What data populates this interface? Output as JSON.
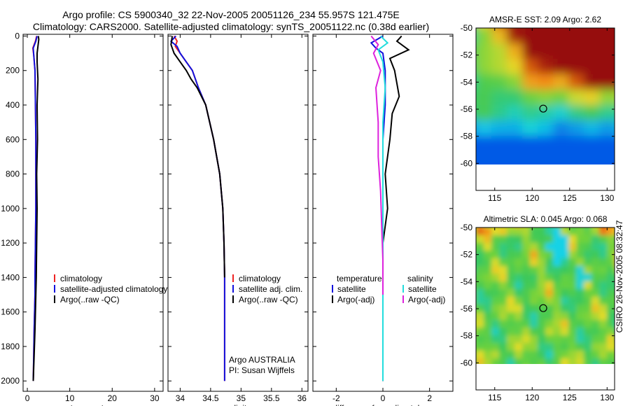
{
  "header": {
    "line1": "Argo profile: CS 5900340_32 22-Nov-2005 20051126_234 55.957S 121.475E",
    "line2": "Climatology: CARS2000. Satellite-adjusted climatology: synTS_20051122.nc (0.38d earlier)"
  },
  "footer": {
    "credit": "CSIRO 26-Nov-2005 08:32:47"
  },
  "colors": {
    "red": "#ee2222",
    "blue": "#1111dd",
    "black": "#000000",
    "cyan": "#22dddd",
    "magenta": "#dd22dd"
  },
  "chart_data": [
    {
      "name": "temperature-profile",
      "type": "line",
      "xlabel": "temperature",
      "xlim": [
        -1,
        32
      ],
      "ylim": [
        2060,
        -10
      ],
      "xticks": [
        0,
        10,
        20,
        30
      ],
      "yticks": [
        0,
        200,
        400,
        600,
        800,
        1000,
        1200,
        1400,
        1600,
        1800,
        2000
      ],
      "legend": {
        "placement": "lower-right",
        "entries": [
          "climatology",
          "satellite-adjusted climatology",
          "Argo(..raw -QC)"
        ]
      },
      "series": [
        {
          "name": "climatology",
          "color": "red",
          "x": [
            2.2,
            1.9,
            1.3,
            1.5,
            1.8,
            1.9,
            2.0,
            2.0,
            2.0,
            1.9,
            1.8,
            1.8,
            1.7,
            1.6,
            1.5,
            1.4
          ],
          "y": [
            0,
            30,
            70,
            110,
            200,
            400,
            600,
            800,
            1000,
            1200,
            1400,
            1500,
            1600,
            1700,
            1850,
            2000
          ]
        },
        {
          "name": "satellite-adjusted climatology",
          "color": "blue",
          "x": [
            2.3,
            2.0,
            1.4,
            1.5,
            1.8,
            1.9,
            2.0,
            2.0,
            2.0,
            1.9,
            1.8,
            1.8,
            1.7,
            1.6,
            1.5,
            1.4
          ],
          "y": [
            0,
            30,
            70,
            110,
            200,
            400,
            600,
            800,
            1000,
            1200,
            1400,
            1500,
            1600,
            1700,
            1850,
            2000
          ]
        },
        {
          "name": "Argo(..raw -QC)",
          "color": "black",
          "x": [
            2.6,
            2.7,
            2.5,
            2.3,
            2.3,
            2.5,
            2.3,
            2.4,
            2.2,
            2.3,
            2.2,
            2.1,
            2.0,
            1.9,
            1.8,
            1.6,
            1.4
          ],
          "y": [
            0,
            20,
            60,
            100,
            150,
            250,
            400,
            600,
            800,
            1000,
            1200,
            1400,
            1500,
            1600,
            1700,
            1850,
            2000
          ]
        }
      ]
    },
    {
      "name": "salinity-profile",
      "type": "line",
      "xlabel": "salinity",
      "xlim": [
        33.8,
        36.1
      ],
      "ylim": [
        2060,
        -10
      ],
      "xticks": [
        34,
        34.5,
        35,
        35.5,
        36
      ],
      "yticks": [
        0,
        200,
        400,
        600,
        800,
        1000,
        1200,
        1400,
        1600,
        1800,
        2000
      ],
      "legend": {
        "placement": "lower-right",
        "entries": [
          "climatology",
          "satellite adj. clim.",
          "Argo(..raw -QC)"
        ]
      },
      "annotations": [
        "Argo AUSTRALIA",
        "PI: Susan Wijffels"
      ],
      "series": [
        {
          "name": "climatology",
          "color": "red",
          "x": [
            33.9,
            33.95,
            33.92,
            34.0,
            34.1,
            34.2,
            34.3,
            34.42,
            34.55,
            34.65,
            34.7,
            34.72,
            34.73,
            34.73,
            34.73,
            34.73
          ],
          "y": [
            0,
            30,
            60,
            100,
            150,
            200,
            300,
            400,
            600,
            800,
            1000,
            1200,
            1400,
            1600,
            1800,
            2000
          ]
        },
        {
          "name": "satellite adj. clim.",
          "color": "blue",
          "x": [
            33.93,
            33.85,
            33.95,
            34.0,
            34.1,
            34.2,
            34.3,
            34.42,
            34.55,
            34.65,
            34.7,
            34.72,
            34.73,
            34.73,
            34.73,
            34.73
          ],
          "y": [
            0,
            30,
            60,
            100,
            150,
            200,
            300,
            400,
            600,
            800,
            1000,
            1200,
            1400,
            1600,
            1800,
            2000
          ]
        },
        {
          "name": "Argo(..raw -QC)",
          "color": "black",
          "x": [
            33.87,
            33.85,
            33.9,
            34.0,
            34.1,
            34.18,
            34.28,
            34.42,
            34.55,
            34.65,
            34.7,
            34.72,
            34.73
          ],
          "y": [
            0,
            50,
            100,
            150,
            200,
            250,
            300,
            400,
            600,
            800,
            1000,
            1200,
            1400
          ]
        }
      ]
    },
    {
      "name": "difference-profile",
      "type": "line",
      "xlabel": "difference from climatology",
      "xlim": [
        -3,
        3
      ],
      "ylim": [
        2060,
        -10
      ],
      "xticks": [
        -2,
        0,
        2
      ],
      "yticks": [
        0,
        200,
        400,
        600,
        800,
        1000,
        1200,
        1400,
        1600,
        1800,
        2000
      ],
      "legend": {
        "placement": "lower-right",
        "groups": [
          "temperature",
          "salinity"
        ],
        "entries": [
          "satellite",
          "Argo(-adj)",
          "satellite",
          "Argo(-adj)"
        ]
      },
      "series": [
        {
          "name": "satellite",
          "group": "temperature",
          "color": "blue",
          "x": [
            0.0,
            -0.5,
            -0.3,
            0.0,
            0.1,
            0.1,
            0.0,
            0.0,
            0.0,
            0.0,
            0.0,
            0.0,
            0.0
          ],
          "y": [
            0,
            40,
            70,
            100,
            200,
            400,
            600,
            800,
            1000,
            1200,
            1500,
            1800,
            2000
          ]
        },
        {
          "name": "Argo(-adj)",
          "group": "temperature",
          "color": "black",
          "x": [
            0.8,
            0.6,
            1.1,
            0.3,
            0.5,
            0.7,
            0.4,
            0.3,
            0.1,
            0.2,
            0.0,
            0.0,
            0.0,
            0.0
          ],
          "y": [
            0,
            30,
            80,
            130,
            200,
            350,
            450,
            600,
            800,
            1000,
            1200,
            1500,
            1800,
            2000
          ]
        },
        {
          "name": "satellite",
          "group": "salinity",
          "color": "cyan",
          "x": [
            -0.1,
            0.2,
            -0.2,
            0.0,
            0.1,
            0.0,
            0.0,
            0.0,
            0.0,
            0.0,
            0.0,
            0.0
          ],
          "y": [
            0,
            40,
            80,
            150,
            300,
            500,
            700,
            1000,
            1300,
            1600,
            1800,
            2000
          ]
        },
        {
          "name": "Argo(-adj)",
          "group": "salinity",
          "color": "magenta",
          "x": [
            -0.5,
            -0.2,
            -0.4,
            -0.1,
            -0.3,
            -0.2,
            -0.2,
            -0.1,
            -0.05,
            0.0,
            0.0
          ],
          "y": [
            0,
            50,
            100,
            200,
            300,
            500,
            700,
            900,
            1100,
            1300,
            1500
          ]
        }
      ]
    },
    {
      "name": "sst-map",
      "type": "heatmap",
      "title": "AMSR-E SST: 2.09 Argo: 2.62",
      "xlim": [
        112.5,
        131
      ],
      "ylim": [
        -62,
        -50
      ],
      "xticks": [
        115,
        120,
        125,
        130
      ],
      "yticks": [
        -50,
        -52,
        -54,
        -56,
        -58,
        -60
      ],
      "marker": {
        "lon": 121.475,
        "lat": -55.957
      },
      "data_extent": {
        "lat_min": -60
      }
    },
    {
      "name": "sla-map",
      "type": "heatmap",
      "title": "Altimetric SLA: 0.045 Argo: 0.068",
      "xlim": [
        112.5,
        131
      ],
      "ylim": [
        -62,
        -50
      ],
      "xticks": [
        115,
        120,
        125,
        130
      ],
      "yticks": [
        -50,
        -52,
        -54,
        -56,
        -58,
        -60
      ],
      "marker": {
        "lon": 121.475,
        "lat": -55.957
      },
      "data_extent": {
        "lat_min": -60
      }
    }
  ]
}
